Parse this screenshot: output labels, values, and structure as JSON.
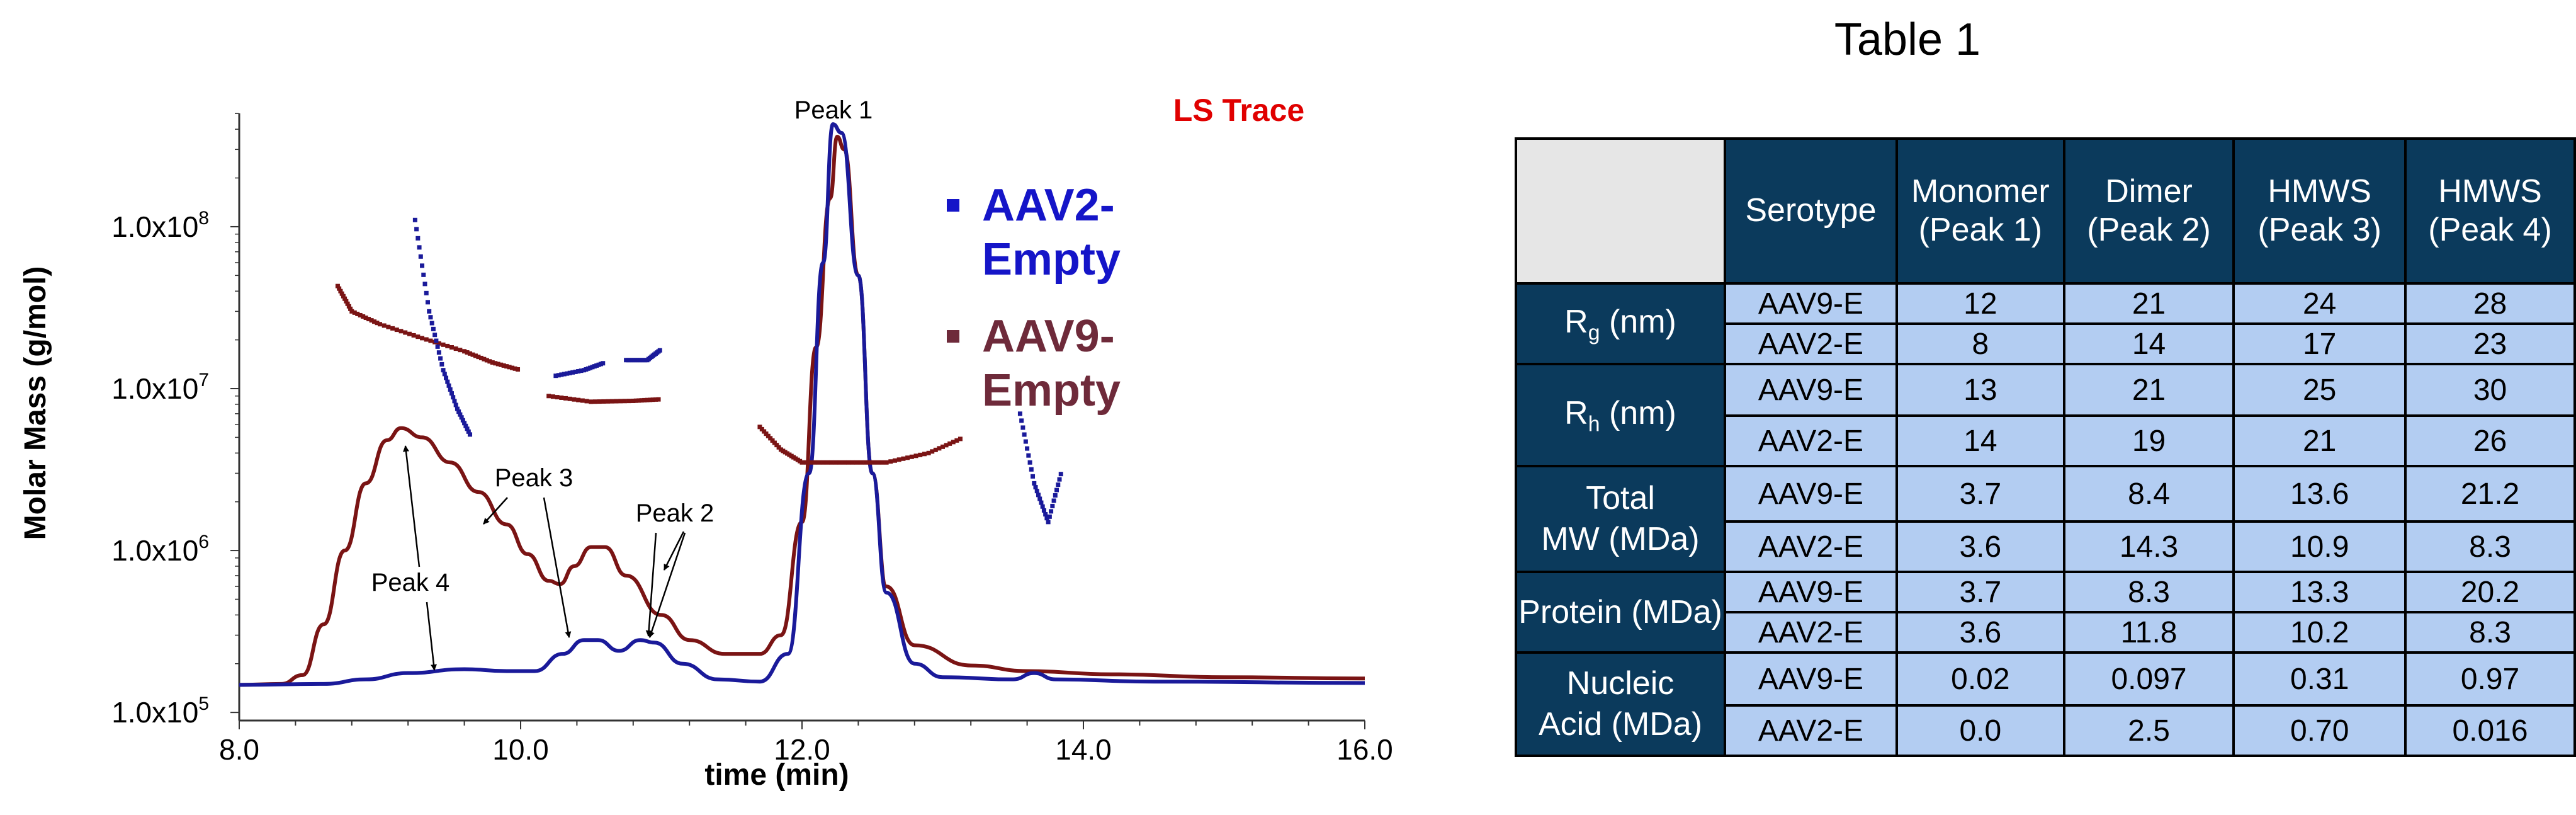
{
  "chart_data": {
    "type": "line",
    "xlabel": "time (min)",
    "ylabel": "Molar Mass (g/mol)",
    "x_ticks": [
      "8.0",
      "10.0",
      "12.0",
      "14.0",
      "16.0"
    ],
    "y_ticks": [
      {
        "mantissa": "1.0x10",
        "exp": "5",
        "value": 100000
      },
      {
        "mantissa": "1.0x10",
        "exp": "6",
        "value": 1000000
      },
      {
        "mantissa": "1.0x10",
        "exp": "7",
        "value": 10000000
      },
      {
        "mantissa": "1.0x10",
        "exp": "8",
        "value": 100000000
      }
    ],
    "xlim": [
      8.0,
      16.0
    ],
    "ylim_log10": [
      4.95,
      8.7
    ],
    "y_scale": "log",
    "trace_label": "LS Trace",
    "legend": [
      {
        "line1": "AAV2-",
        "line2": "Empty",
        "color": "#1515c8"
      },
      {
        "line1": "AAV9-",
        "line2": "Empty",
        "color": "#6e2a3a"
      }
    ],
    "ls_traces": [
      {
        "name": "AAV9-Empty",
        "color": "#7a1414",
        "points": [
          [
            8.0,
            148000.0
          ],
          [
            8.3,
            150000.0
          ],
          [
            8.45,
            170000.0
          ],
          [
            8.6,
            350000.0
          ],
          [
            8.75,
            1000000.0
          ],
          [
            8.9,
            2600000.0
          ],
          [
            9.05,
            4800000.0
          ],
          [
            9.15,
            5700000.0
          ],
          [
            9.3,
            5000000.0
          ],
          [
            9.5,
            3500000.0
          ],
          [
            9.7,
            2300000.0
          ],
          [
            9.9,
            1450000.0
          ],
          [
            10.05,
            950000.0
          ],
          [
            10.2,
            650000.0
          ],
          [
            10.28,
            620000.0
          ],
          [
            10.38,
            800000.0
          ],
          [
            10.5,
            1050000.0
          ],
          [
            10.6,
            1050000.0
          ],
          [
            10.75,
            700000.0
          ],
          [
            11.0,
            400000.0
          ],
          [
            11.2,
            280000.0
          ],
          [
            11.45,
            230000.0
          ],
          [
            11.7,
            230000.0
          ],
          [
            11.85,
            300000.0
          ],
          [
            12.0,
            1500000.0
          ],
          [
            12.1,
            18000000.0
          ],
          [
            12.2,
            150000000.0
          ],
          [
            12.25,
            360000000.0
          ],
          [
            12.3,
            300000000.0
          ],
          [
            12.4,
            50000000.0
          ],
          [
            12.5,
            3000000.0
          ],
          [
            12.6,
            600000.0
          ],
          [
            12.8,
            260000.0
          ],
          [
            13.2,
            195000.0
          ],
          [
            13.6,
            180000.0
          ],
          [
            14.2,
            172000.0
          ],
          [
            15.0,
            165000.0
          ],
          [
            16.0,
            162000.0
          ]
        ]
      },
      {
        "name": "AAV2-Empty",
        "color": "#1a1a9a",
        "points": [
          [
            8.0,
            148000.0
          ],
          [
            8.6,
            150000.0
          ],
          [
            8.9,
            160000.0
          ],
          [
            9.2,
            175000.0
          ],
          [
            9.6,
            185000.0
          ],
          [
            9.9,
            180000.0
          ],
          [
            10.1,
            180000.0
          ],
          [
            10.3,
            230000.0
          ],
          [
            10.45,
            280000.0
          ],
          [
            10.55,
            280000.0
          ],
          [
            10.7,
            240000.0
          ],
          [
            10.85,
            280000.0
          ],
          [
            10.95,
            270000.0
          ],
          [
            11.15,
            200000.0
          ],
          [
            11.4,
            160000.0
          ],
          [
            11.7,
            155000.0
          ],
          [
            11.9,
            230000.0
          ],
          [
            12.05,
            3000000.0
          ],
          [
            12.15,
            60000000.0
          ],
          [
            12.22,
            430000000.0
          ],
          [
            12.28,
            380000000.0
          ],
          [
            12.4,
            50000000.0
          ],
          [
            12.5,
            3000000.0
          ],
          [
            12.6,
            550000.0
          ],
          [
            12.8,
            200000.0
          ],
          [
            13.0,
            165000.0
          ],
          [
            13.5,
            160000.0
          ],
          [
            13.65,
            175000.0
          ],
          [
            13.8,
            160000.0
          ],
          [
            14.5,
            155000.0
          ],
          [
            16.0,
            152000.0
          ]
        ]
      }
    ],
    "mm_series": [
      {
        "name": "AAV9-Empty",
        "color": "#7a1414",
        "segments": [
          [
            [
              8.7,
              43000000.0
            ],
            [
              8.8,
              30000000.0
            ],
            [
              9.0,
              25000000.0
            ],
            [
              9.3,
              20500000.0
            ],
            [
              9.6,
              17000000.0
            ],
            [
              9.8,
              14500000.0
            ],
            [
              10.0,
              13000000.0
            ]
          ],
          [
            [
              10.2,
              9000000.0
            ],
            [
              10.5,
              8300000.0
            ],
            [
              10.8,
              8400000.0
            ],
            [
              11.0,
              8600000.0
            ]
          ],
          [
            [
              11.7,
              5800000.0
            ],
            [
              11.85,
              4200000.0
            ],
            [
              12.0,
              3500000.0
            ],
            [
              12.3,
              3500000.0
            ],
            [
              12.6,
              3500000.0
            ],
            [
              12.9,
              4000000.0
            ],
            [
              13.15,
              5000000.0
            ]
          ]
        ]
      },
      {
        "name": "AAV2-Empty",
        "color": "#1a1a9a",
        "segments": [
          [
            [
              9.25,
              110000000.0
            ],
            [
              9.35,
              30000000.0
            ],
            [
              9.45,
              13000000.0
            ],
            [
              9.55,
              7500000.0
            ],
            [
              9.65,
              5000000.0
            ]
          ],
          [
            [
              10.25,
              12000000.0
            ],
            [
              10.45,
              13000000.0
            ],
            [
              10.6,
              14500000.0
            ]
          ],
          [
            [
              10.75,
              15000000.0
            ],
            [
              10.9,
              15000000.0
            ],
            [
              11.0,
              17500000.0
            ]
          ],
          [
            [
              13.55,
              7000000.0
            ],
            [
              13.65,
              2600000.0
            ],
            [
              13.75,
              1500000.0
            ],
            [
              13.85,
              3200000.0
            ]
          ]
        ]
      }
    ],
    "annotations": [
      {
        "text": "Peak 1"
      },
      {
        "text": "Peak 2"
      },
      {
        "text": "Peak 3"
      },
      {
        "text": "Peak 4"
      }
    ]
  },
  "table": {
    "title": "Table 1",
    "headers": [
      {
        "line1": "Serotype",
        "line2": ""
      },
      {
        "line1": "Monomer",
        "line2": "(Peak 1)"
      },
      {
        "line1": "Dimer",
        "line2": "(Peak 2)"
      },
      {
        "line1": "HMWS",
        "line2": "(Peak 3)"
      },
      {
        "line1": "HMWS",
        "line2": "(Peak 4)"
      }
    ],
    "groups": [
      {
        "label_main": "R",
        "label_sub": "g",
        "label_tail": " (nm)",
        "rows": [
          {
            "serotype": "AAV9-E",
            "values": [
              "12",
              "21",
              "24",
              "28"
            ]
          },
          {
            "serotype": "AAV2-E",
            "values": [
              "8",
              "14",
              "17",
              "23"
            ]
          }
        ]
      },
      {
        "label_main": "R",
        "label_sub": "h",
        "label_tail": " (nm)",
        "rows": [
          {
            "serotype": "AAV9-E",
            "values": [
              "13",
              "21",
              "25",
              "30"
            ]
          },
          {
            "serotype": "AAV2-E",
            "values": [
              "14",
              "19",
              "21",
              "26"
            ]
          }
        ]
      },
      {
        "label_line1": "Total",
        "label_line2": "MW (MDa)",
        "rows": [
          {
            "serotype": "AAV9-E",
            "values": [
              "3.7",
              "8.4",
              "13.6",
              "21.2"
            ]
          },
          {
            "serotype": "AAV2-E",
            "values": [
              "3.6",
              "14.3",
              "10.9",
              "8.3"
            ]
          }
        ]
      },
      {
        "label_line1": "Protein (MDa)",
        "label_line2": "",
        "rows": [
          {
            "serotype": "AAV9-E",
            "values": [
              "3.7",
              "8.3",
              "13.3",
              "20.2"
            ]
          },
          {
            "serotype": "AAV2-E",
            "values": [
              "3.6",
              "11.8",
              "10.2",
              "8.3"
            ]
          }
        ]
      },
      {
        "label_line1": "Nucleic",
        "label_line2": "Acid (MDa)",
        "rows": [
          {
            "serotype": "AAV9-E",
            "values": [
              "0.02",
              "0.097",
              "0.31",
              "0.97"
            ]
          },
          {
            "serotype": "AAV2-E",
            "values": [
              "0.0",
              "2.5",
              "0.70",
              "0.016"
            ]
          }
        ]
      }
    ]
  }
}
